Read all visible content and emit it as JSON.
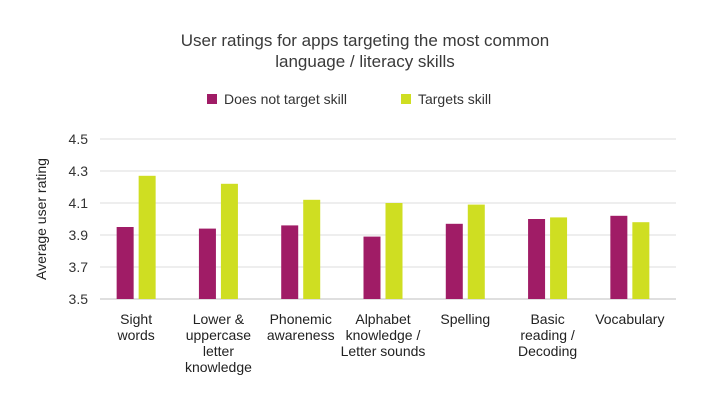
{
  "chart_data": {
    "type": "bar",
    "title_lines": [
      "User ratings for apps targeting the most common",
      "language / literacy skills"
    ],
    "ylabel": "Average user rating",
    "xlabel": "",
    "ylim": [
      3.5,
      4.5
    ],
    "yticks": [
      "3.5",
      "3.7",
      "3.9",
      "4.1",
      "4.3",
      "4.5"
    ],
    "grid": true,
    "legend_position": "top",
    "categories": [
      [
        "Sight",
        "words"
      ],
      [
        "Lower &",
        "uppercase",
        "letter",
        "knowledge"
      ],
      [
        "Phonemic",
        "awareness"
      ],
      [
        "Alphabet",
        "knowledge /",
        "Letter sounds"
      ],
      [
        "Spelling"
      ],
      [
        "Basic",
        "reading /",
        "Decoding"
      ],
      [
        "Vocabulary"
      ]
    ],
    "series": [
      {
        "name": "Does not target skill",
        "color": "#a01c66",
        "values": [
          3.95,
          3.94,
          3.96,
          3.89,
          3.97,
          4.0,
          4.02
        ]
      },
      {
        "name": "Targets skill",
        "color": "#cfde22",
        "values": [
          4.27,
          4.22,
          4.12,
          4.1,
          4.09,
          4.01,
          3.98
        ]
      }
    ]
  }
}
